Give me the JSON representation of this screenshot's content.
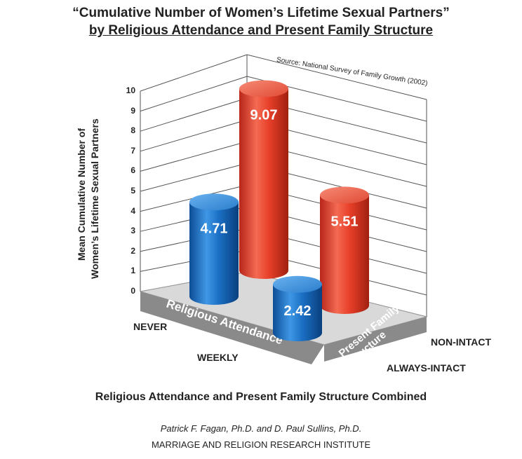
{
  "chart_data": {
    "type": "bar",
    "title": "“Cumulative Number of Women’s Lifetime Sexual Partners”",
    "subtitle": "by Religious Attendance and Present Family Structure",
    "source": "Source: National Survey of Family Growth (2002)",
    "ylabel_line1": "Mean Cumulative Number of",
    "ylabel_line2": "Women’s Lifetime Sexual Partners",
    "xlabel": "Religious Attendance and Present Family Structure Combined",
    "ylim": [
      0,
      10
    ],
    "yticks": [
      "0",
      "1",
      "2",
      "3",
      "4",
      "5",
      "6",
      "7",
      "8",
      "9",
      "10"
    ],
    "grid": true,
    "x_axis_band": "Religious Attendance",
    "x_categories": [
      "NEVER",
      "WEEKLY"
    ],
    "z_axis_band_line1": "Present Family",
    "z_axis_band_line2": "Structure",
    "z_categories": [
      "NON-INTACT",
      "ALWAYS-INTACT"
    ],
    "series": [
      {
        "name": "NON-INTACT",
        "color": "#e8402a",
        "values": [
          9.07,
          5.51
        ]
      },
      {
        "name": "ALWAYS-INTACT",
        "color": "#1a6fc4",
        "values": [
          4.71,
          2.42
        ]
      }
    ],
    "value_labels": {
      "never_nonintact": "9.07",
      "weekly_nonintact": "5.51",
      "never_intact": "4.71",
      "weekly_intact": "2.42"
    }
  },
  "credits": {
    "author": "Patrick F. Fagan, Ph.D. and D. Paul Sullins, Ph.D.",
    "organization": "MARRIAGE AND RELIGION RESEARCH INSTITUTE"
  }
}
